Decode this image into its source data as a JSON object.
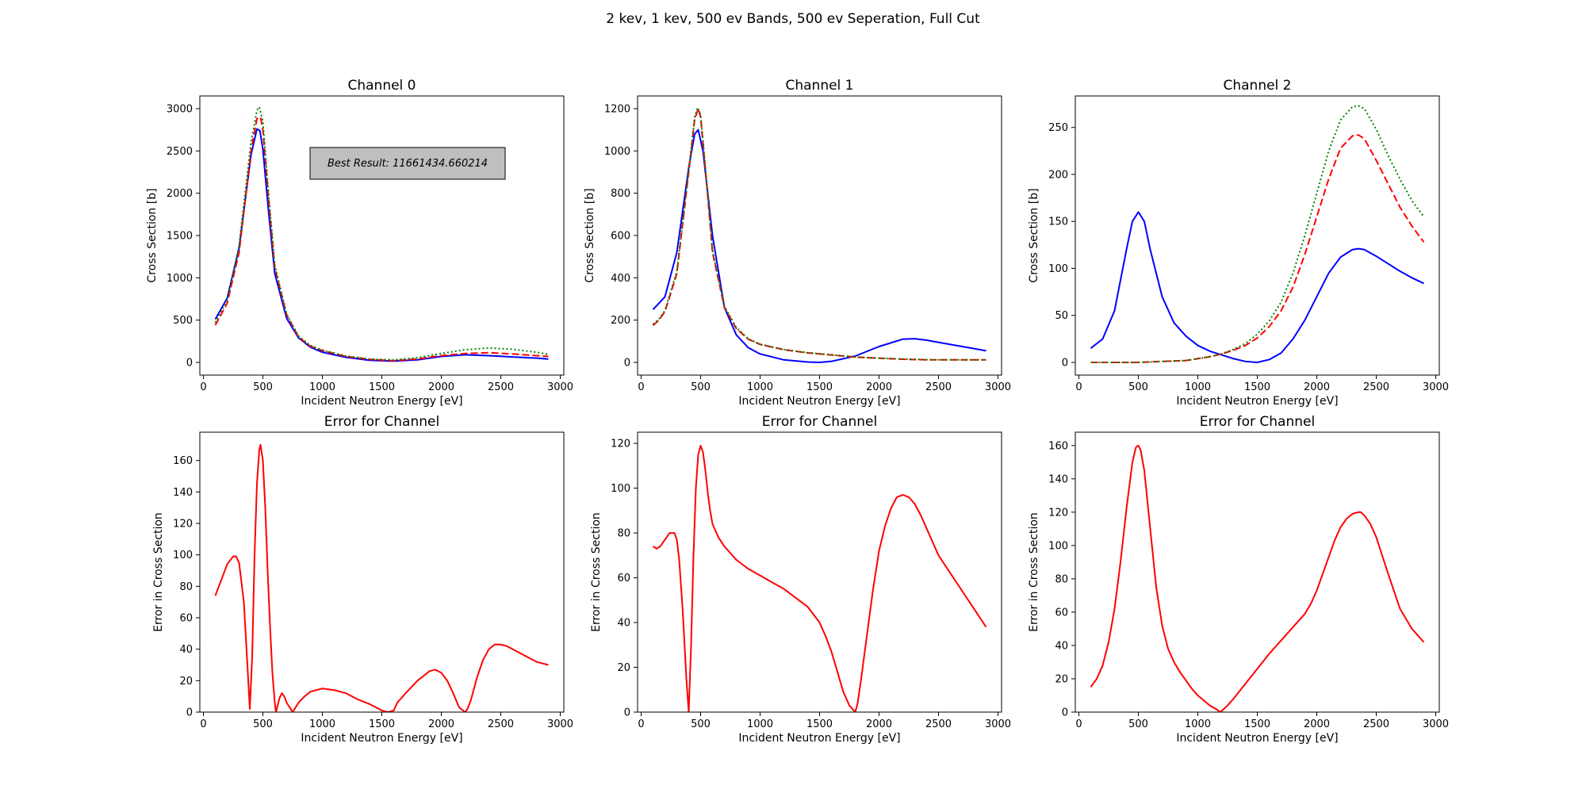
{
  "figure": {
    "title": "2 kev, 1 kev, 500 ev Bands, 500 ev Seperation, Full Cut"
  },
  "colors": {
    "series_solid": "#0000ff",
    "series_dashed": "#ff0000",
    "series_dotted": "#008000",
    "error_line": "#ff0000",
    "annotation_box": "#bfbfbf"
  },
  "chart_data": [
    {
      "type": "line",
      "title": "Channel 0",
      "xlabel": "Incident Neutron Energy [eV]",
      "ylabel": "Cross Section [b]",
      "xlim": [
        -30,
        3030
      ],
      "ylim": [
        -150,
        3150
      ],
      "xticks": [
        0,
        500,
        1000,
        1500,
        2000,
        2500,
        3000
      ],
      "yticks": [
        0,
        500,
        1000,
        1500,
        2000,
        2500,
        3000
      ],
      "annotation": "Best Result: 11661434.660214",
      "series": [
        {
          "style": "solid",
          "color": "#0000ff",
          "x": [
            100,
            200,
            300,
            400,
            450,
            475,
            500,
            550,
            600,
            700,
            800,
            900,
            1000,
            1200,
            1400,
            1600,
            1800,
            2000,
            2200,
            2400,
            2600,
            2800,
            2900
          ],
          "y": [
            510,
            760,
            1350,
            2450,
            2760,
            2740,
            2520,
            1750,
            1050,
            520,
            290,
            180,
            120,
            60,
            25,
            15,
            30,
            70,
            90,
            80,
            65,
            50,
            40
          ]
        },
        {
          "style": "dashed",
          "color": "#ff0000",
          "x": [
            100,
            200,
            300,
            400,
            450,
            480,
            500,
            550,
            600,
            700,
            800,
            900,
            1000,
            1200,
            1400,
            1600,
            1800,
            2000,
            2200,
            2400,
            2600,
            2800,
            2900
          ],
          "y": [
            440,
            700,
            1300,
            2500,
            2880,
            2900,
            2750,
            1900,
            1120,
            560,
            300,
            190,
            140,
            70,
            35,
            20,
            40,
            80,
            105,
            115,
            100,
            80,
            70
          ]
        },
        {
          "style": "dotted",
          "color": "#008000",
          "x": [
            100,
            200,
            300,
            400,
            450,
            470,
            500,
            550,
            600,
            700,
            800,
            900,
            1000,
            1200,
            1400,
            1600,
            1800,
            2000,
            2200,
            2400,
            2600,
            2800,
            2900
          ],
          "y": [
            470,
            740,
            1380,
            2600,
            2980,
            3020,
            2850,
            1950,
            1150,
            570,
            310,
            200,
            145,
            75,
            40,
            30,
            55,
            105,
            150,
            170,
            155,
            120,
            95
          ]
        }
      ]
    },
    {
      "type": "line",
      "title": "Channel 1",
      "xlabel": "Incident Neutron Energy [eV]",
      "ylabel": "Cross Section [b]",
      "xlim": [
        -30,
        3030
      ],
      "ylim": [
        -60,
        1260
      ],
      "xticks": [
        0,
        500,
        1000,
        1500,
        2000,
        2500,
        3000
      ],
      "yticks": [
        0,
        200,
        400,
        600,
        800,
        1000,
        1200
      ],
      "series": [
        {
          "style": "solid",
          "color": "#0000ff",
          "x": [
            100,
            200,
            300,
            400,
            450,
            480,
            520,
            600,
            700,
            800,
            900,
            1000,
            1200,
            1400,
            1500,
            1600,
            1800,
            2000,
            2200,
            2300,
            2400,
            2600,
            2800,
            2900
          ],
          "y": [
            250,
            310,
            520,
            920,
            1080,
            1100,
            1000,
            600,
            260,
            130,
            70,
            40,
            12,
            2,
            0,
            5,
            30,
            75,
            110,
            112,
            105,
            85,
            65,
            55
          ]
        },
        {
          "style": "dashed",
          "color": "#ff0000",
          "x": [
            100,
            150,
            200,
            300,
            400,
            450,
            480,
            500,
            550,
            600,
            700,
            800,
            900,
            1000,
            1200,
            1400,
            1600,
            1800,
            2000,
            2200,
            2400,
            2600,
            2800,
            2900
          ],
          "y": [
            175,
            200,
            240,
            420,
            900,
            1150,
            1200,
            1160,
            850,
            520,
            260,
            160,
            110,
            85,
            60,
            45,
            35,
            25,
            20,
            15,
            12,
            12,
            12,
            12
          ]
        },
        {
          "style": "dotted",
          "color": "#008000",
          "x": [
            100,
            150,
            200,
            300,
            400,
            450,
            475,
            500,
            550,
            600,
            700,
            800,
            900,
            1000,
            1200,
            1400,
            1600,
            1800,
            2000,
            2200,
            2400,
            2600,
            2800,
            2900
          ],
          "y": [
            180,
            205,
            245,
            430,
            910,
            1160,
            1205,
            1170,
            860,
            530,
            265,
            165,
            112,
            86,
            61,
            46,
            36,
            26,
            20,
            16,
            13,
            12,
            12,
            12
          ]
        }
      ]
    },
    {
      "type": "line",
      "title": "Channel 2",
      "xlabel": "Incident Neutron Energy [eV]",
      "ylabel": "Cross Section [b]",
      "xlim": [
        -30,
        3030
      ],
      "ylim": [
        -13.5,
        283.5
      ],
      "xticks": [
        0,
        500,
        1000,
        1500,
        2000,
        2500,
        3000
      ],
      "yticks": [
        0,
        50,
        100,
        150,
        200,
        250
      ],
      "series": [
        {
          "style": "solid",
          "color": "#0000ff",
          "x": [
            100,
            200,
            300,
            400,
            450,
            500,
            550,
            600,
            700,
            800,
            900,
            1000,
            1100,
            1200,
            1300,
            1400,
            1500,
            1600,
            1700,
            1800,
            1900,
            2000,
            2100,
            2200,
            2300,
            2350,
            2400,
            2500,
            2600,
            2700,
            2800,
            2900
          ],
          "y": [
            15,
            25,
            55,
            120,
            150,
            160,
            150,
            120,
            70,
            42,
            28,
            18,
            12,
            8,
            4,
            1,
            0,
            3,
            10,
            25,
            45,
            70,
            95,
            112,
            120,
            121,
            120,
            113,
            105,
            97,
            90,
            84
          ]
        },
        {
          "style": "dashed",
          "color": "#ff0000",
          "x": [
            100,
            300,
            500,
            700,
            900,
            1000,
            1100,
            1200,
            1300,
            1400,
            1500,
            1600,
            1700,
            1800,
            1900,
            2000,
            2100,
            2200,
            2300,
            2350,
            2400,
            2500,
            2600,
            2700,
            2800,
            2900
          ],
          "y": [
            0,
            0,
            0,
            1,
            2,
            4,
            6,
            9,
            13,
            18,
            26,
            38,
            55,
            80,
            115,
            155,
            195,
            228,
            241,
            242,
            238,
            215,
            190,
            165,
            145,
            128
          ]
        },
        {
          "style": "dotted",
          "color": "#008000",
          "x": [
            100,
            300,
            500,
            700,
            900,
            1000,
            1100,
            1200,
            1300,
            1400,
            1500,
            1600,
            1700,
            1800,
            1900,
            2000,
            2100,
            2200,
            2300,
            2350,
            2400,
            2500,
            2600,
            2700,
            2800,
            2900
          ],
          "y": [
            0,
            0,
            0,
            1,
            2,
            4,
            6,
            9,
            14,
            20,
            30,
            44,
            64,
            95,
            135,
            180,
            225,
            258,
            272,
            273,
            270,
            248,
            220,
            195,
            172,
            155
          ]
        }
      ]
    },
    {
      "type": "line",
      "title": "Error for Channel",
      "xlabel": "Incident Neutron Energy [eV]",
      "ylabel": "Error in Cross Section",
      "xlim": [
        -30,
        3030
      ],
      "ylim": [
        0,
        178
      ],
      "xticks": [
        0,
        500,
        1000,
        1500,
        2000,
        2500,
        3000
      ],
      "yticks": [
        0,
        20,
        40,
        60,
        80,
        100,
        120,
        140,
        160
      ],
      "series": [
        {
          "style": "solid",
          "color": "#ff0000",
          "x": [
            100,
            150,
            200,
            250,
            275,
            300,
            340,
            370,
            390,
            410,
            430,
            450,
            470,
            480,
            500,
            520,
            540,
            560,
            580,
            600,
            610,
            620,
            640,
            660,
            680,
            700,
            750,
            800,
            850,
            900,
            1000,
            1100,
            1200,
            1300,
            1400,
            1500,
            1550,
            1600,
            1630,
            1700,
            1800,
            1900,
            1950,
            2000,
            2050,
            2100,
            2150,
            2200,
            2220,
            2250,
            2300,
            2350,
            2400,
            2450,
            2500,
            2550,
            2600,
            2700,
            2800,
            2900
          ],
          "y": [
            74,
            84,
            94,
            99,
            99,
            95,
            70,
            30,
            2,
            35,
            100,
            145,
            167,
            170,
            160,
            130,
            90,
            55,
            25,
            6,
            0,
            3,
            9,
            12,
            10,
            6,
            0,
            6,
            10,
            13,
            15,
            14,
            12,
            8,
            5,
            1,
            0,
            1,
            6,
            12,
            20,
            26,
            27,
            25,
            20,
            12,
            3,
            0,
            2,
            8,
            22,
            33,
            40,
            43,
            43,
            42,
            40,
            36,
            32,
            30
          ]
        }
      ]
    },
    {
      "type": "line",
      "title": "Error for Channel",
      "xlabel": "Incident Neutron Energy [eV]",
      "ylabel": "Error in Cross Section",
      "xlim": [
        -30,
        3030
      ],
      "ylim": [
        0,
        125
      ],
      "xticks": [
        0,
        500,
        1000,
        1500,
        2000,
        2500,
        3000
      ],
      "yticks": [
        0,
        20,
        40,
        60,
        80,
        100,
        120
      ],
      "series": [
        {
          "style": "solid",
          "color": "#ff0000",
          "x": [
            100,
            130,
            160,
            200,
            240,
            280,
            300,
            320,
            350,
            380,
            400,
            420,
            440,
            460,
            480,
            500,
            520,
            540,
            560,
            580,
            600,
            650,
            700,
            800,
            900,
            1000,
            1100,
            1200,
            1300,
            1400,
            1500,
            1550,
            1600,
            1650,
            1700,
            1750,
            1800,
            1820,
            1850,
            1900,
            1950,
            2000,
            2050,
            2100,
            2150,
            2200,
            2250,
            2300,
            2350,
            2400,
            2450,
            2500,
            2600,
            2700,
            2800,
            2900
          ],
          "y": [
            74,
            73,
            74,
            77,
            80,
            80,
            77,
            68,
            45,
            15,
            0,
            30,
            70,
            100,
            115,
            119,
            116,
            108,
            98,
            90,
            84,
            78,
            74,
            68,
            64,
            61,
            58,
            55,
            51,
            47,
            40,
            34,
            27,
            18,
            9,
            3,
            0,
            4,
            15,
            35,
            55,
            72,
            83,
            91,
            96,
            97,
            96,
            93,
            88,
            82,
            76,
            70,
            62,
            54,
            46,
            38
          ]
        }
      ]
    },
    {
      "type": "line",
      "title": "Error for Channel",
      "xlabel": "Incident Neutron Energy [eV]",
      "ylabel": "Error in Cross Section",
      "xlim": [
        -30,
        3030
      ],
      "ylim": [
        0,
        168
      ],
      "xticks": [
        0,
        500,
        1000,
        1500,
        2000,
        2500,
        3000
      ],
      "yticks": [
        0,
        20,
        40,
        60,
        80,
        100,
        120,
        140,
        160
      ],
      "series": [
        {
          "style": "solid",
          "color": "#ff0000",
          "x": [
            100,
            150,
            200,
            250,
            300,
            350,
            400,
            450,
            480,
            500,
            520,
            550,
            600,
            650,
            700,
            750,
            800,
            850,
            900,
            950,
            1000,
            1050,
            1100,
            1150,
            1190,
            1250,
            1300,
            1400,
            1500,
            1600,
            1700,
            1800,
            1900,
            1950,
            2000,
            2050,
            2100,
            2150,
            2200,
            2250,
            2300,
            2350,
            2370,
            2400,
            2450,
            2500,
            2550,
            2600,
            2700,
            2800,
            2900
          ],
          "y": [
            15,
            20,
            28,
            42,
            62,
            90,
            122,
            150,
            159,
            160,
            157,
            145,
            110,
            75,
            52,
            38,
            30,
            24,
            19,
            14,
            10,
            7,
            4,
            2,
            0,
            4,
            8,
            17,
            26,
            35,
            43,
            51,
            59,
            65,
            73,
            83,
            93,
            103,
            111,
            116,
            119,
            120,
            120,
            118,
            113,
            105,
            94,
            83,
            62,
            50,
            42
          ]
        }
      ]
    }
  ]
}
